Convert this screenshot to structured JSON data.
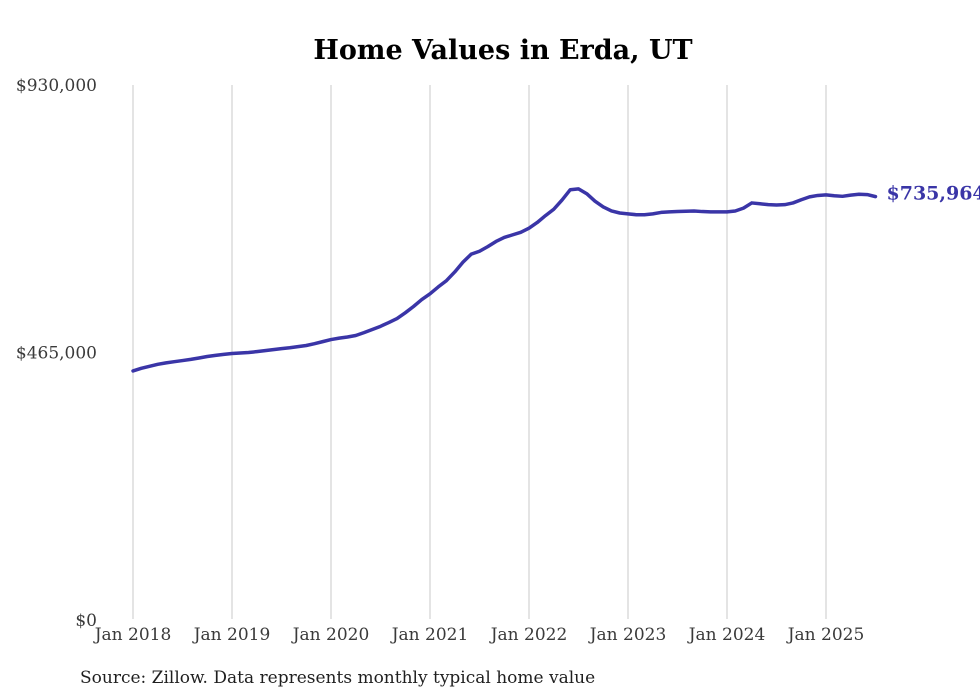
{
  "title": "Home Values in Erda, UT",
  "source_note": "Source: Zillow. Data represents monthly typical home value",
  "end_label": "$735,964",
  "colors": {
    "line": "#3a35a7",
    "grid": "#c8c8c8",
    "axis_text": "#3a3a3a",
    "title": "#000000",
    "source": "#1f1f1f",
    "background": "#ffffff"
  },
  "chart_data": {
    "type": "line",
    "title": "Home Values in Erda, UT",
    "xlabel": "",
    "ylabel": "",
    "x_unit": "month",
    "x_start": "Jan 2018",
    "x_end": "Jul 2025",
    "x_tick_labels": [
      "Jan 2018",
      "Jan 2019",
      "Jan 2020",
      "Jan 2021",
      "Jan 2022",
      "Jan 2023",
      "Jan 2024",
      "Jan 2025"
    ],
    "months_per_x_tick": 12,
    "y_ticks": [
      0,
      465000,
      930000
    ],
    "y_tick_labels": [
      "$0",
      "$465,000",
      "$930,000"
    ],
    "ylim": [
      0,
      930000
    ],
    "grid": "vertical",
    "legend": "none",
    "series": [
      {
        "name": "Typical home value",
        "final_value": 735964,
        "values": [
          433000,
          437500,
          441000,
          444500,
          447000,
          449000,
          451000,
          453000,
          455500,
          458000,
          460000,
          461700,
          463200,
          464200,
          465000,
          466500,
          468200,
          470000,
          471800,
          473200,
          475200,
          477200,
          480300,
          483900,
          487500,
          490000,
          492000,
          494500,
          499500,
          505000,
          510500,
          517000,
          524000,
          534000,
          545000,
          557000,
          567000,
          579000,
          590000,
          605000,
          622000,
          636000,
          641000,
          649000,
          658000,
          665000,
          669500,
          674000,
          681000,
          691000,
          703000,
          714000,
          730000,
          748000,
          749500,
          741000,
          728000,
          718000,
          711000,
          707500,
          706000,
          704500,
          704500,
          706000,
          708500,
          709500,
          710000,
          710500,
          711000,
          710000,
          709500,
          709500,
          709500,
          711000,
          716000,
          725000,
          723500,
          722000,
          721500,
          722000,
          725000,
          730500,
          735500,
          738000,
          739000,
          737500,
          736500,
          738500,
          740000,
          739500,
          735964
        ]
      }
    ]
  }
}
